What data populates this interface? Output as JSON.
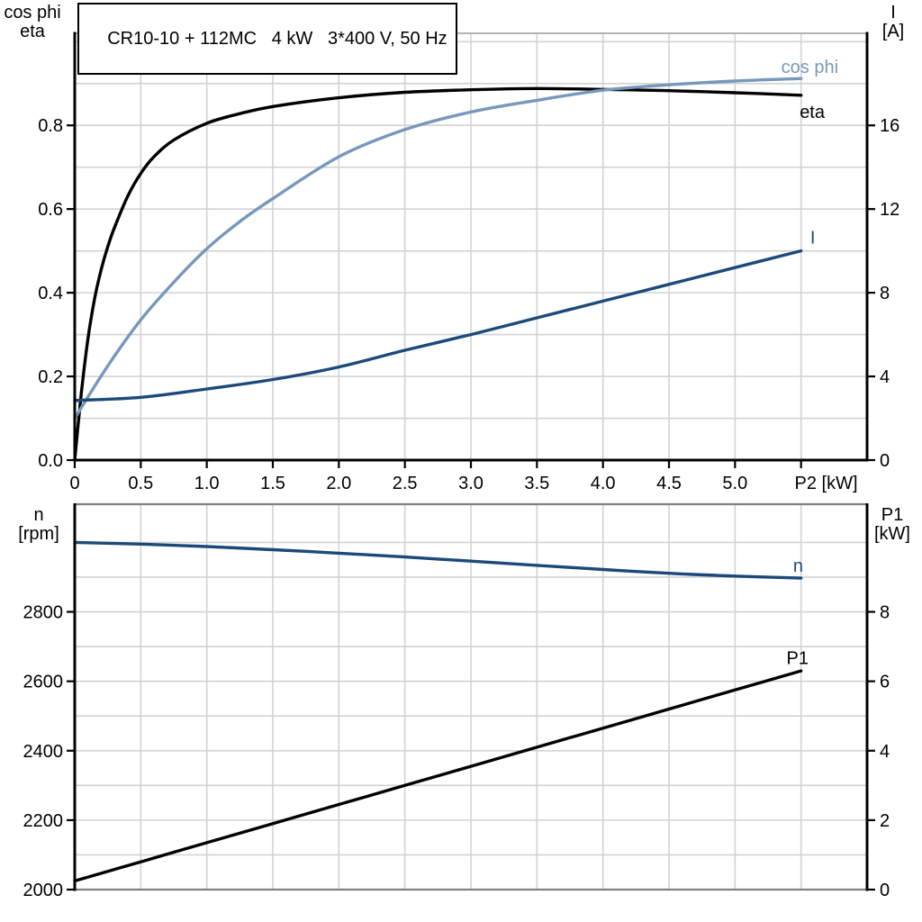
{
  "title_box": {
    "text": "CR10-10 + 112MC   4 kW   3*400 V, 50 Hz"
  },
  "top_panel": {
    "left_axis_title": [
      "cos phi",
      "eta"
    ],
    "right_axis_title": [
      "I",
      "[A]"
    ]
  },
  "bottom_panel": {
    "left_axis_title": [
      "n",
      "[rpm]"
    ],
    "right_axis_title": [
      "P1",
      "[kW]"
    ]
  },
  "colors": {
    "eta": "#000000",
    "cos_phi": "#7698bb",
    "current": "#1b4a7a",
    "speed": "#1b4a7a",
    "p1": "#000000",
    "grid": "#d2d2d2",
    "frame": "#808080"
  },
  "chart_data": [
    {
      "type": "line",
      "title": "CR10-10 + 112MC 4 kW 3*400 V, 50 Hz",
      "xlabel": "P2 [kW]",
      "ylabel_left": "cos phi / eta",
      "ylabel_right": "I [A]",
      "grid": true,
      "axes": {
        "x": {
          "min": 0,
          "max": 6.0,
          "ticks": [
            0,
            0.5,
            1.0,
            1.5,
            2.0,
            2.5,
            3.0,
            3.5,
            4.0,
            4.5,
            5.0,
            5.5
          ],
          "tick_labels": [
            "0",
            "0.5",
            "1.0",
            "1.5",
            "2.0",
            "2.5",
            "3.0",
            "3.5",
            "4.0",
            "4.5",
            "5.0",
            ""
          ],
          "grid": [
            0.5,
            1.0,
            1.5,
            2.0,
            2.5,
            3.0,
            3.5,
            4.0,
            4.5,
            5.0,
            5.5
          ],
          "axis_label": "P2 [kW]",
          "axis_label_x": 5.69
        },
        "left": {
          "min": 0,
          "max": 1.02,
          "ticks": [
            0,
            0.2,
            0.4,
            0.6,
            0.8
          ],
          "tick_labels": [
            "0.0",
            "0.2",
            "0.4",
            "0.6",
            "0.8"
          ],
          "grid": [
            0.1,
            0.2,
            0.3,
            0.4,
            0.5,
            0.6,
            0.7,
            0.8,
            0.9,
            1.0
          ]
        },
        "right": {
          "min": 0,
          "max": 20.4,
          "ticks": [
            0,
            4,
            8,
            12,
            16
          ],
          "tick_labels": [
            "0",
            "4",
            "8",
            "12",
            "16"
          ]
        }
      },
      "series": [
        {
          "name": "eta",
          "axis": "left",
          "color": "#000000",
          "x": [
            0,
            0.05,
            0.1,
            0.15,
            0.2,
            0.25,
            0.3,
            0.4,
            0.5,
            0.6,
            0.75,
            1.0,
            1.25,
            1.5,
            2.0,
            2.5,
            3.0,
            3.5,
            4.0,
            4.5,
            5.0,
            5.5
          ],
          "y": [
            0,
            0.16,
            0.29,
            0.385,
            0.455,
            0.51,
            0.555,
            0.63,
            0.685,
            0.725,
            0.765,
            0.805,
            0.828,
            0.845,
            0.866,
            0.879,
            0.885,
            0.888,
            0.886,
            0.883,
            0.878,
            0.872
          ],
          "label": {
            "text": "eta",
            "x": 5.49,
            "y": 0.818,
            "anchor": "start"
          }
        },
        {
          "name": "cos phi",
          "axis": "left",
          "color": "#7698bb",
          "x": [
            0,
            0.25,
            0.5,
            0.75,
            1.0,
            1.25,
            1.5,
            2.0,
            2.5,
            3.0,
            3.5,
            4.0,
            4.5,
            5.0,
            5.5
          ],
          "y": [
            0.1,
            0.225,
            0.335,
            0.425,
            0.505,
            0.57,
            0.625,
            0.725,
            0.79,
            0.832,
            0.86,
            0.884,
            0.897,
            0.906,
            0.912
          ],
          "label": {
            "text": "cos phi",
            "x": 5.35,
            "y": 0.925,
            "anchor": "start"
          }
        },
        {
          "name": "I",
          "axis": "right",
          "color": "#1b4a7a",
          "x": [
            0,
            0.5,
            1.0,
            1.5,
            2.0,
            2.5,
            3.0,
            3.5,
            4.0,
            4.5,
            5.0,
            5.5
          ],
          "y": [
            2.85,
            3.0,
            3.4,
            3.85,
            4.45,
            5.25,
            6.0,
            6.8,
            7.6,
            8.4,
            9.2,
            10.0
          ],
          "label": {
            "text": "I",
            "x": 5.57,
            "y": 10.35,
            "anchor": "start"
          }
        }
      ]
    },
    {
      "type": "line",
      "title": "",
      "xlabel": "",
      "ylabel_left": "n [rpm]",
      "ylabel_right": "P1 [kW]",
      "grid": true,
      "axes": {
        "x": {
          "min": 0,
          "max": 6.0,
          "ticks": [],
          "tick_labels": [],
          "grid": [
            0.5,
            1.0,
            1.5,
            2.0,
            2.5,
            3.0,
            3.5,
            4.0,
            4.5,
            5.0,
            5.5
          ],
          "axis_label": "",
          "axis_label_x": null
        },
        "left": {
          "min": 2000,
          "max": 3110,
          "ticks": [
            2000,
            2200,
            2400,
            2600,
            2800
          ],
          "tick_labels": [
            "2000",
            "2200",
            "2400",
            "2600",
            "2800"
          ],
          "grid": [
            2100,
            2200,
            2300,
            2400,
            2500,
            2600,
            2700,
            2800,
            2900,
            3000
          ]
        },
        "right": {
          "min": 0,
          "max": 11.1,
          "ticks": [
            0,
            2,
            4,
            6,
            8
          ],
          "tick_labels": [
            "0",
            "2",
            "4",
            "6",
            "8"
          ]
        }
      },
      "series": [
        {
          "name": "n",
          "axis": "left",
          "color": "#1b4a7a",
          "x": [
            0,
            0.5,
            1.0,
            1.5,
            2.0,
            2.5,
            3.0,
            3.5,
            4.0,
            4.5,
            5.0,
            5.5
          ],
          "y": [
            3000,
            2995,
            2988,
            2979,
            2969,
            2958,
            2946,
            2934,
            2922,
            2911,
            2903,
            2897
          ],
          "label": {
            "text": "n",
            "x": 5.44,
            "y": 2916,
            "anchor": "start"
          }
        },
        {
          "name": "P1",
          "axis": "right",
          "color": "#000000",
          "x": [
            0,
            0.5,
            1.0,
            1.5,
            2.0,
            2.5,
            3.0,
            3.5,
            4.0,
            4.5,
            5.0,
            5.5
          ],
          "y": [
            0.25,
            0.8,
            1.35,
            1.9,
            2.45,
            3.0,
            3.55,
            4.1,
            4.65,
            5.2,
            5.75,
            6.3
          ],
          "label": {
            "text": "P1",
            "x": 5.39,
            "y": 6.5,
            "anchor": "start"
          }
        }
      ]
    }
  ]
}
